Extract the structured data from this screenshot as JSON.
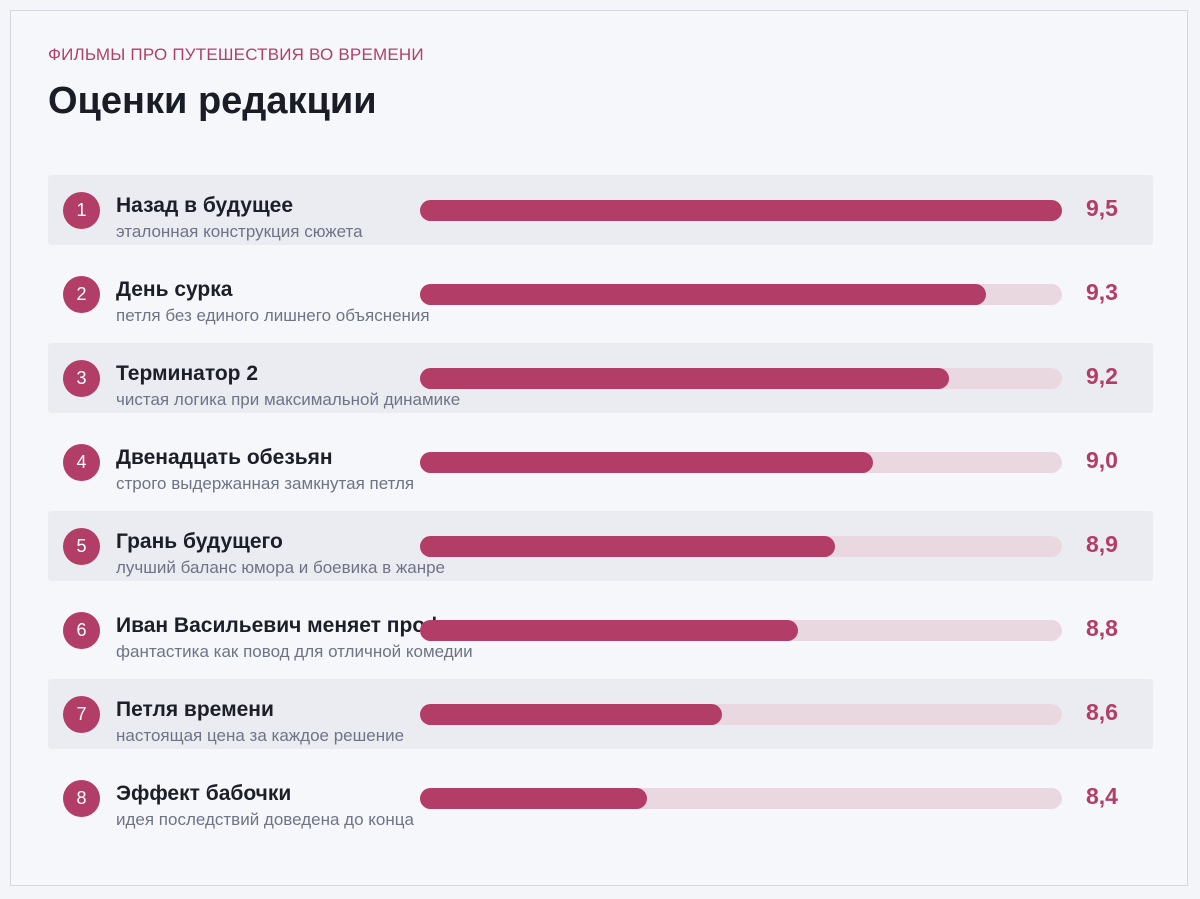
{
  "header": {
    "kicker": "ФИЛЬМЫ ПРО ПУТЕШЕСТВИЯ ВО ВРЕМЕНИ",
    "title": "Оценки редакции"
  },
  "colors": {
    "accent": "#b23d67",
    "track": "#ead8e0",
    "row_shade": "#eaecf1"
  },
  "chart_data": {
    "type": "bar",
    "orientation": "horizontal",
    "title": "Оценки редакции",
    "subtitle": "ФИЛЬМЫ ПРО ПУТЕШЕСТВИЯ ВО ВРЕМЕНИ",
    "scale_min": 7.8,
    "scale_max": 9.5,
    "items": [
      {
        "rank": "1",
        "name": "Назад в будущее",
        "note": "эталонная конструкция сюжета",
        "value": 9.5,
        "value_label": "9,5"
      },
      {
        "rank": "2",
        "name": "День сурка",
        "note": "петля без единого лишнего объяснения",
        "value": 9.3,
        "value_label": "9,3"
      },
      {
        "rank": "3",
        "name": "Терминатор 2",
        "note": "чистая логика при максимальной динамике",
        "value": 9.2,
        "value_label": "9,2"
      },
      {
        "rank": "4",
        "name": "Двенадцать обезьян",
        "note": "строго выдержанная замкнутая петля",
        "value": 9.0,
        "value_label": "9,0"
      },
      {
        "rank": "5",
        "name": "Грань будущего",
        "note": "лучший баланс юмора и боевика в жанре",
        "value": 8.9,
        "value_label": "8,9"
      },
      {
        "rank": "6",
        "name": "Иван Васильевич меняет профессию",
        "note": "фантастика как повод для отличной комедии",
        "value": 8.8,
        "value_label": "8,8"
      },
      {
        "rank": "7",
        "name": "Петля времени",
        "note": "настоящая цена за каждое решение",
        "value": 8.6,
        "value_label": "8,6"
      },
      {
        "rank": "8",
        "name": "Эффект бабочки",
        "note": "идея последствий доведена до конца",
        "value": 8.4,
        "value_label": "8,4"
      }
    ]
  }
}
